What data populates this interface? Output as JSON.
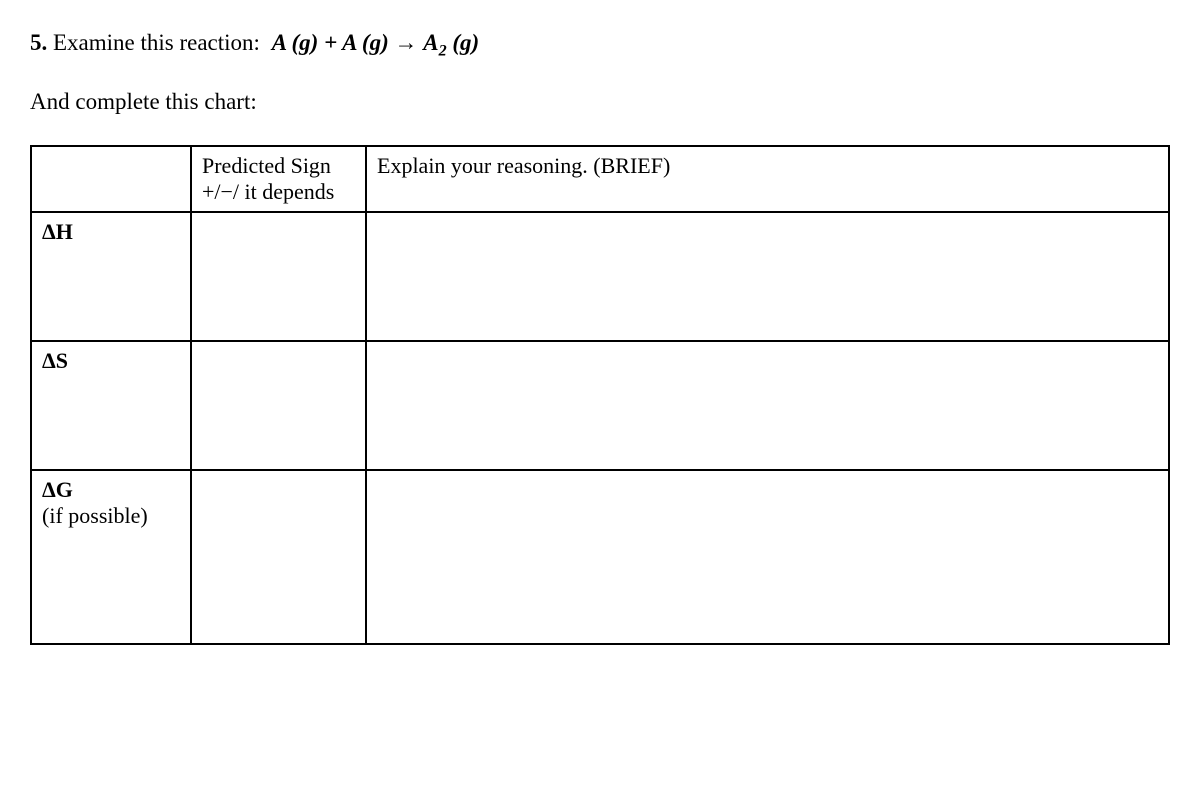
{
  "question": {
    "number": "5.",
    "prompt": "Examine this reaction:",
    "reaction_lhs1": "A (g)",
    "plus": " + ",
    "reaction_lhs2": "A  (g)",
    "arrow": " → ",
    "reaction_rhs_A": "A",
    "reaction_rhs_sub": "2",
    "reaction_rhs_tail": "  (g)"
  },
  "instruction": "And complete this chart:",
  "table": {
    "header": {
      "col1": "",
      "col2_line1": "Predicted Sign",
      "col2_line2": "+/−/ it depends",
      "col3": "Explain your reasoning. (BRIEF)"
    },
    "rows": [
      {
        "label": "ΔH",
        "sublabel": "",
        "sign": "",
        "reason": ""
      },
      {
        "label": "ΔS",
        "sublabel": "",
        "sign": "",
        "reason": ""
      },
      {
        "label": "ΔG",
        "sublabel": "(if possible)",
        "sign": "",
        "reason": ""
      }
    ]
  }
}
